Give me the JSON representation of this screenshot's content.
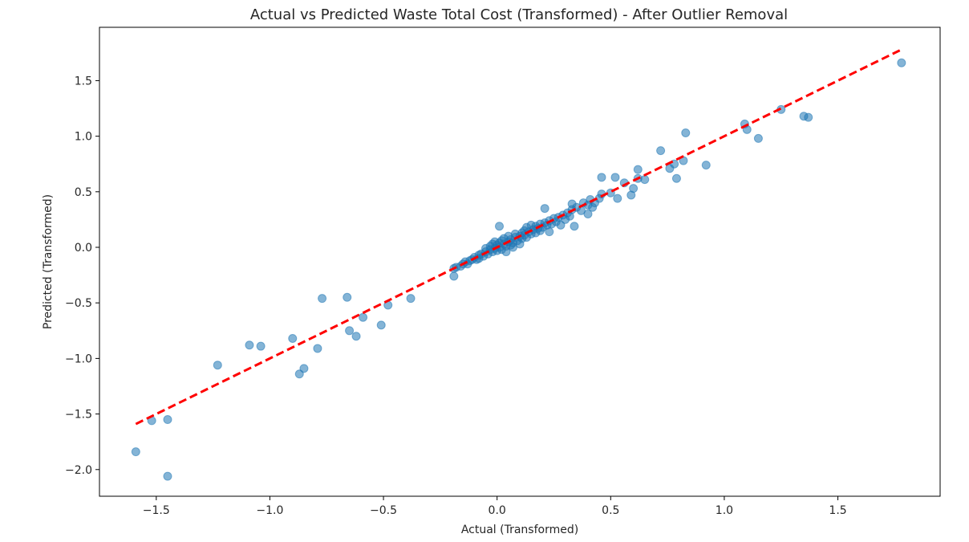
{
  "chart_data": {
    "type": "scatter",
    "title": "Actual vs Predicted Waste Total Cost (Transformed) - After Outlier Removal",
    "xlabel": "Actual (Transformed)",
    "ylabel": "Predicted (Transformed)",
    "xlim": [
      -1.75,
      1.95
    ],
    "ylim": [
      -2.24,
      1.98
    ],
    "x_ticks": [
      -1.5,
      -1.0,
      -0.5,
      0.0,
      0.5,
      1.0,
      1.5
    ],
    "y_ticks": [
      -2.0,
      -1.5,
      -1.0,
      -0.5,
      0.0,
      0.5,
      1.0,
      1.5
    ],
    "x_tick_labels": [
      "−1.5",
      "−1.0",
      "−0.5",
      "0.0",
      "0.5",
      "1.0",
      "1.5"
    ],
    "y_tick_labels": [
      "−2.0",
      "−1.5",
      "−1.0",
      "−0.5",
      "0.0",
      "0.5",
      "1.0",
      "1.5"
    ],
    "grid": false,
    "point_color": "#1f77b4",
    "point_alpha": 0.55,
    "reference_line": {
      "label": "",
      "color": "#ff0000",
      "x": [
        -1.59,
        1.78
      ],
      "y": [
        -1.59,
        1.78
      ]
    },
    "points": [
      [
        -1.59,
        -1.84
      ],
      [
        -1.52,
        -1.56
      ],
      [
        -1.45,
        -1.55
      ],
      [
        -1.45,
        -2.06
      ],
      [
        -1.23,
        -1.06
      ],
      [
        -1.09,
        -0.88
      ],
      [
        -1.04,
        -0.89
      ],
      [
        -0.9,
        -0.82
      ],
      [
        -0.87,
        -1.14
      ],
      [
        -0.85,
        -1.09
      ],
      [
        -0.79,
        -0.91
      ],
      [
        -0.77,
        -0.46
      ],
      [
        -0.66,
        -0.45
      ],
      [
        -0.65,
        -0.75
      ],
      [
        -0.62,
        -0.8
      ],
      [
        -0.59,
        -0.63
      ],
      [
        -0.51,
        -0.7
      ],
      [
        -0.48,
        -0.52
      ],
      [
        -0.38,
        -0.46
      ],
      [
        -0.19,
        -0.26
      ],
      [
        -0.19,
        -0.19
      ],
      [
        -0.18,
        -0.18
      ],
      [
        -0.16,
        -0.17
      ],
      [
        -0.15,
        -0.15
      ],
      [
        -0.14,
        -0.13
      ],
      [
        -0.13,
        -0.15
      ],
      [
        -0.12,
        -0.12
      ],
      [
        -0.11,
        -0.11
      ],
      [
        -0.1,
        -0.09
      ],
      [
        -0.09,
        -0.11
      ],
      [
        -0.08,
        -0.07
      ],
      [
        -0.08,
        -0.1
      ],
      [
        -0.07,
        -0.06
      ],
      [
        -0.06,
        -0.08
      ],
      [
        -0.05,
        -0.04
      ],
      [
        -0.05,
        -0.01
      ],
      [
        -0.04,
        -0.06
      ],
      [
        -0.03,
        -0.02
      ],
      [
        -0.03,
        0.01
      ],
      [
        -0.02,
        -0.04
      ],
      [
        -0.02,
        0.03
      ],
      [
        -0.01,
        -0.01
      ],
      [
        -0.01,
        0.05
      ],
      [
        0.0,
        0.02
      ],
      [
        0.0,
        -0.03
      ],
      [
        0.01,
        0.04
      ],
      [
        0.01,
        0.0
      ],
      [
        0.01,
        0.19
      ],
      [
        0.02,
        0.06
      ],
      [
        0.02,
        -0.02
      ],
      [
        0.03,
        0.03
      ],
      [
        0.03,
        0.08
      ],
      [
        0.04,
        0.01
      ],
      [
        0.04,
        -0.04
      ],
      [
        0.05,
        0.05
      ],
      [
        0.05,
        0.1
      ],
      [
        0.06,
        0.02
      ],
      [
        0.06,
        0.07
      ],
      [
        0.07,
        0.04
      ],
      [
        0.07,
        0.0
      ],
      [
        0.08,
        0.09
      ],
      [
        0.08,
        0.12
      ],
      [
        0.09,
        0.06
      ],
      [
        0.1,
        0.1
      ],
      [
        0.1,
        0.03
      ],
      [
        0.11,
        0.13
      ],
      [
        0.11,
        0.08
      ],
      [
        0.12,
        0.15
      ],
      [
        0.12,
        0.11
      ],
      [
        0.13,
        0.18
      ],
      [
        0.13,
        0.09
      ],
      [
        0.14,
        0.14
      ],
      [
        0.15,
        0.12
      ],
      [
        0.15,
        0.2
      ],
      [
        0.16,
        0.16
      ],
      [
        0.17,
        0.19
      ],
      [
        0.17,
        0.13
      ],
      [
        0.18,
        0.17
      ],
      [
        0.19,
        0.21
      ],
      [
        0.19,
        0.15
      ],
      [
        0.2,
        0.18
      ],
      [
        0.21,
        0.22
      ],
      [
        0.21,
        0.35
      ],
      [
        0.22,
        0.2
      ],
      [
        0.23,
        0.24
      ],
      [
        0.23,
        0.14
      ],
      [
        0.24,
        0.21
      ],
      [
        0.25,
        0.26
      ],
      [
        0.26,
        0.23
      ],
      [
        0.27,
        0.27
      ],
      [
        0.28,
        0.2
      ],
      [
        0.29,
        0.29
      ],
      [
        0.3,
        0.25
      ],
      [
        0.31,
        0.31
      ],
      [
        0.32,
        0.28
      ],
      [
        0.33,
        0.34
      ],
      [
        0.33,
        0.39
      ],
      [
        0.34,
        0.19
      ],
      [
        0.35,
        0.36
      ],
      [
        0.37,
        0.33
      ],
      [
        0.38,
        0.4
      ],
      [
        0.4,
        0.38
      ],
      [
        0.4,
        0.3
      ],
      [
        0.41,
        0.43
      ],
      [
        0.42,
        0.36
      ],
      [
        0.43,
        0.4
      ],
      [
        0.45,
        0.44
      ],
      [
        0.46,
        0.48
      ],
      [
        0.46,
        0.63
      ],
      [
        0.5,
        0.49
      ],
      [
        0.52,
        0.63
      ],
      [
        0.53,
        0.44
      ],
      [
        0.56,
        0.58
      ],
      [
        0.59,
        0.47
      ],
      [
        0.6,
        0.53
      ],
      [
        0.62,
        0.7
      ],
      [
        0.62,
        0.62
      ],
      [
        0.65,
        0.61
      ],
      [
        0.72,
        0.87
      ],
      [
        0.76,
        0.71
      ],
      [
        0.78,
        0.75
      ],
      [
        0.79,
        0.62
      ],
      [
        0.82,
        0.78
      ],
      [
        0.83,
        1.03
      ],
      [
        0.92,
        0.74
      ],
      [
        1.09,
        1.11
      ],
      [
        1.1,
        1.06
      ],
      [
        1.15,
        0.98
      ],
      [
        1.25,
        1.24
      ],
      [
        1.35,
        1.18
      ],
      [
        1.37,
        1.17
      ],
      [
        1.78,
        1.66
      ]
    ]
  }
}
